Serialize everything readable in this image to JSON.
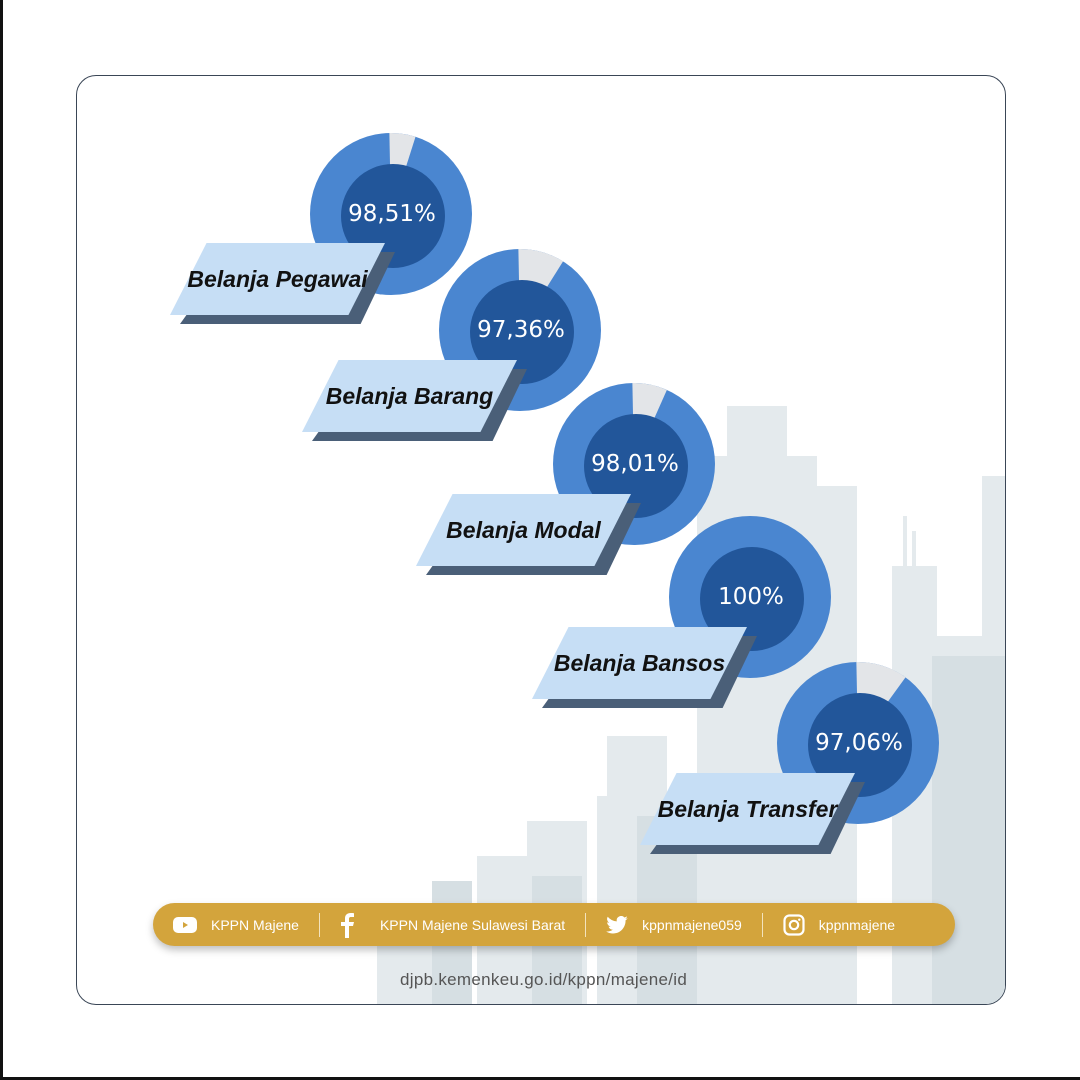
{
  "chart_data": {
    "type": "pie",
    "variant": "donut",
    "colors": {
      "filled": "#4a86d0",
      "remaining": "#e3e5e8",
      "center": "#22569a",
      "label_bg": "#c6def5"
    },
    "items": [
      {
        "category": "Belanja Pegawai",
        "value": 98.51,
        "label": "98,51%"
      },
      {
        "category": "Belanja Barang",
        "value": 97.36,
        "label": "97,36%"
      },
      {
        "category": "Belanja Modal",
        "value": 98.01,
        "label": "98,01%"
      },
      {
        "category": "Belanja Bansos",
        "value": 100,
        "label": "100%"
      },
      {
        "category": "Belanja Transfer",
        "value": 97.06,
        "label": "97,06%"
      }
    ]
  },
  "footer": {
    "items": [
      {
        "icon": "youtube-icon",
        "label": "KPPN Majene"
      },
      {
        "icon": "facebook-icon",
        "label": "KPPN Majene Sulawesi Barat"
      },
      {
        "icon": "twitter-icon",
        "label": "kppnmajene059"
      },
      {
        "icon": "instagram-icon",
        "label": "kppnmajene"
      }
    ],
    "url": "djpb.kemenkeu.go.id/kppn/majene/id"
  }
}
